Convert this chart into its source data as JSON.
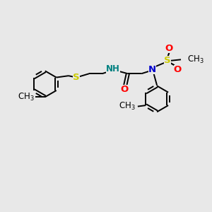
{
  "bg_color": "#e8e8e8",
  "bond_color": "#000000",
  "N_color": "#0000cc",
  "NH_color": "#008080",
  "S_color": "#cccc00",
  "S2_color": "#cccc00",
  "O_color": "#ff0000",
  "C_color": "#000000",
  "figsize": [
    3.0,
    3.0
  ],
  "dpi": 100,
  "xlim": [
    0,
    10
  ],
  "ylim": [
    0,
    10
  ]
}
